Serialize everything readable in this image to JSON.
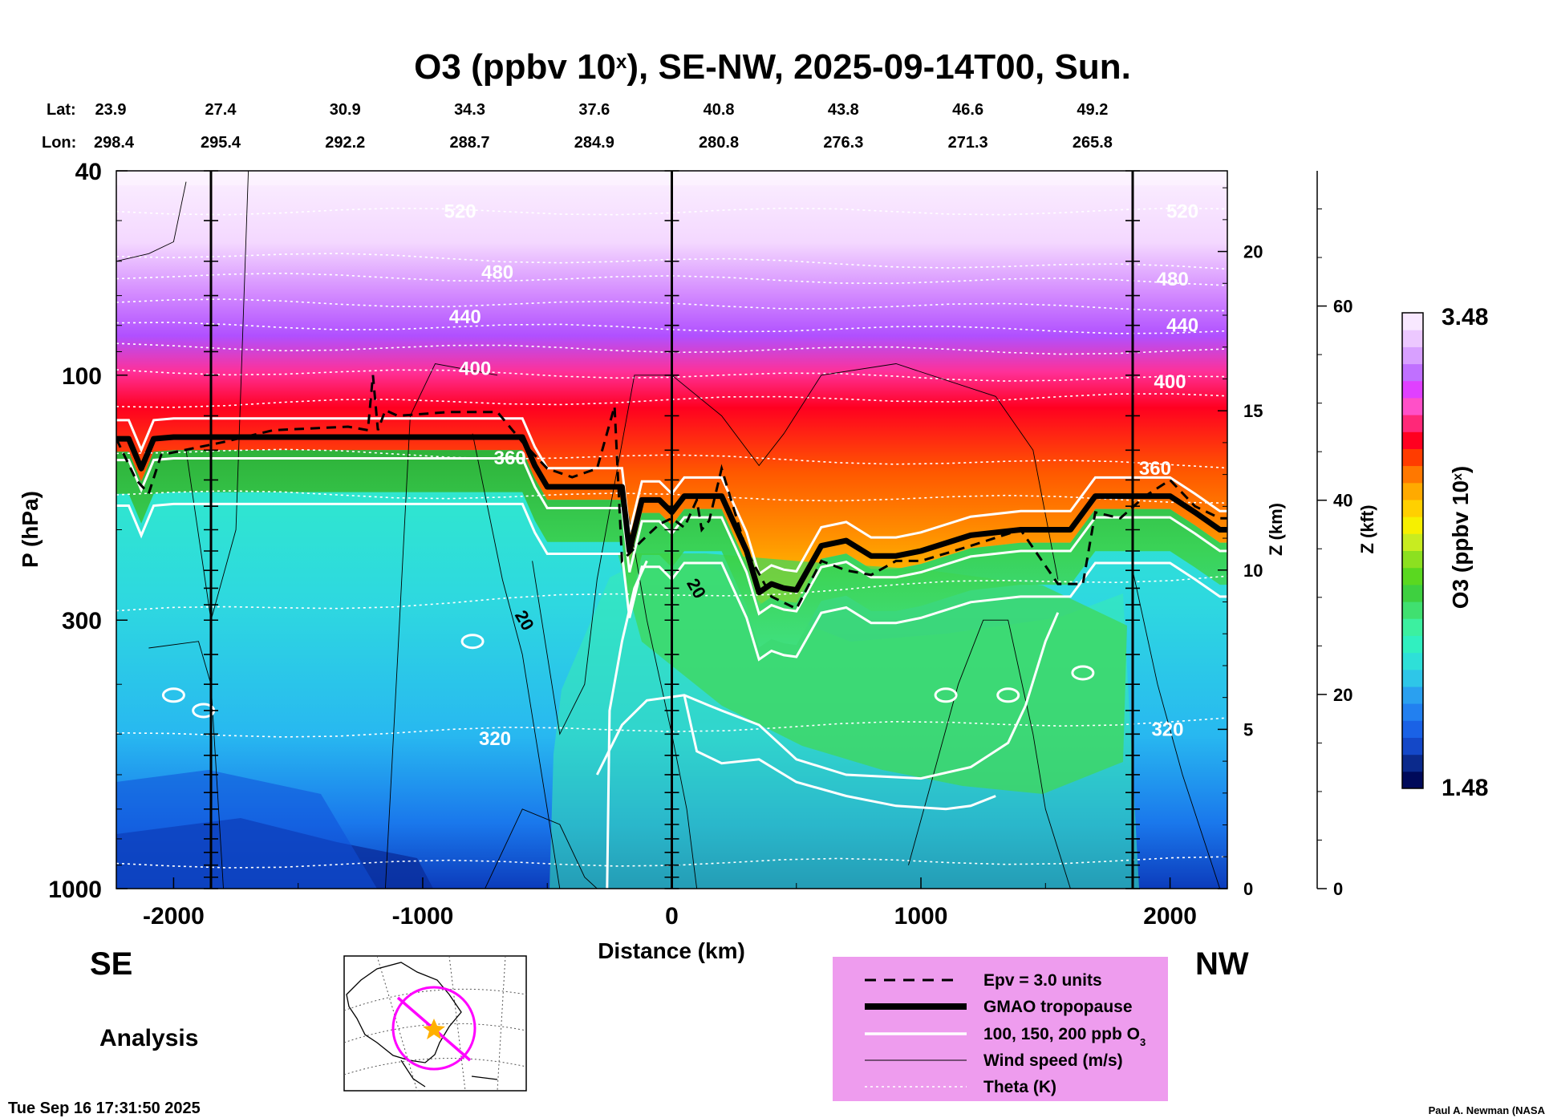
{
  "chart_data": {
    "type": "heatmap",
    "title": "O3 (ppbv 10ˣ), SE-NW, 2025-09-14T00, Sun.",
    "title_parts": {
      "pre": "O3 (ppbv 10",
      "sup": "x",
      "post": "), SE-NW, 2025-09-14T00, Sun."
    },
    "xlabel": "Distance (km)",
    "ylabel": "P (hPa)",
    "xlim": [
      -2230,
      2230
    ],
    "ylim": [
      1000,
      40
    ],
    "yscale": "log",
    "x_ticks": [
      -2000,
      -1000,
      0,
      1000,
      2000
    ],
    "y_ticks": [
      40,
      100,
      300,
      1000
    ],
    "z_km_label": "Z (km)",
    "z_km_ticks": [
      0,
      5,
      10,
      15,
      20
    ],
    "z_kft_label": "Z (kft)",
    "z_kft_ticks": [
      0,
      20,
      40,
      60
    ],
    "lat_label": "Lat:",
    "lon_label": "Lon:",
    "lat": [
      "23.9",
      "27.4",
      "30.9",
      "34.3",
      "37.6",
      "40.8",
      "43.8",
      "46.6",
      "49.2"
    ],
    "lon": [
      "298.4",
      "295.4",
      "292.2",
      "288.7",
      "284.9",
      "280.8",
      "276.3",
      "271.3",
      "265.8"
    ],
    "station_x_km": [
      -1850,
      0,
      1850
    ],
    "colorbar": {
      "label_pre": "O3 (ppbv 10",
      "label_sup": "x",
      "label_post": ")",
      "min": "1.48",
      "max": "3.48",
      "colors": [
        "#000a5a",
        "#0b2a8c",
        "#1448c8",
        "#1a62e6",
        "#2280f0",
        "#2aa0f0",
        "#2ec6e8",
        "#2ee0d8",
        "#30f0c0",
        "#3cf0a0",
        "#40e070",
        "#3ed040",
        "#5ad820",
        "#8ce020",
        "#c8ec20",
        "#f6f000",
        "#ffd000",
        "#ffaa00",
        "#ff7800",
        "#ff3c00",
        "#ff0020",
        "#ff2878",
        "#ff50c8",
        "#e040ff",
        "#c070ff",
        "#d8a0ff",
        "#ecc8ff",
        "#f8e8ff"
      ]
    },
    "theta_labels": [
      {
        "text": "520",
        "x": -850,
        "p": 48
      },
      {
        "text": "520",
        "x": 2050,
        "p": 48
      },
      {
        "text": "480",
        "x": -700,
        "p": 63
      },
      {
        "text": "480",
        "x": 2010,
        "p": 65
      },
      {
        "text": "440",
        "x": -830,
        "p": 77
      },
      {
        "text": "440",
        "x": 2050,
        "p": 80
      },
      {
        "text": "400",
        "x": -790,
        "p": 97
      },
      {
        "text": "400",
        "x": 2000,
        "p": 103
      },
      {
        "text": "360",
        "x": -650,
        "p": 145
      },
      {
        "text": "360",
        "x": 1940,
        "p": 152
      },
      {
        "text": "320",
        "x": -710,
        "p": 510
      },
      {
        "text": "320",
        "x": 1990,
        "p": 490
      }
    ],
    "wind_labels": [
      {
        "text": "20",
        "x": -590,
        "p": 300
      },
      {
        "text": "20",
        "x": 100,
        "p": 260
      }
    ],
    "tropopause_p": {
      "x": [
        -2230,
        -2180,
        -2130,
        -2080,
        -2000,
        -1900,
        -1800,
        -1500,
        -1000,
        -600,
        -550,
        -500,
        -400,
        -300,
        -200,
        -170,
        -120,
        -50,
        0,
        50,
        200,
        300,
        350,
        400,
        450,
        500,
        600,
        700,
        800,
        900,
        1000,
        1200,
        1400,
        1500,
        1600,
        1700,
        1800,
        1900,
        2000,
        2100,
        2200,
        2230
      ],
      "p": [
        133,
        133,
        152,
        133,
        132,
        132,
        132,
        132,
        132,
        132,
        150,
        165,
        165,
        165,
        165,
        220,
        175,
        175,
        185,
        172,
        172,
        220,
        265,
        255,
        260,
        262,
        215,
        210,
        225,
        225,
        220,
        205,
        200,
        200,
        200,
        172,
        172,
        172,
        172,
        185,
        200,
        200
      ]
    },
    "epv_p": {
      "x": [
        -2230,
        -2150,
        -2100,
        -2050,
        -1800,
        -1600,
        -1300,
        -1220,
        -1200,
        -1180,
        -1150,
        -1100,
        -900,
        -700,
        -600,
        -500,
        -400,
        -300,
        -230,
        -200,
        -120,
        -50,
        0,
        50,
        100,
        120,
        150,
        200,
        300,
        400,
        500,
        600,
        700,
        800,
        900,
        1000,
        1200,
        1400,
        1550,
        1650,
        1700,
        1800,
        1900,
        2000,
        2100,
        2200,
        2230
      ],
      "p": [
        133,
        160,
        170,
        143,
        135,
        128,
        126,
        128,
        100,
        128,
        117,
        120,
        118,
        118,
        135,
        152,
        158,
        152,
        115,
        230,
        210,
        195,
        190,
        198,
        175,
        200,
        192,
        152,
        220,
        270,
        285,
        230,
        240,
        245,
        230,
        230,
        215,
        200,
        255,
        255,
        185,
        190,
        172,
        160,
        180,
        190,
        190
      ]
    },
    "legend": {
      "epv": "Epv = 3.0 units",
      "tropopause": "GMAO tropopause",
      "ozone_pre": "100, 150, 200 ppb O",
      "ozone_sub": "3",
      "wind": "Wind speed (m/s)",
      "theta": "Theta (K)"
    }
  },
  "footer": {
    "left_dir": "SE",
    "right_dir": "NW",
    "analysis": "Analysis",
    "timestamp": "Tue Sep 16 17:31:50 2025",
    "author": "Paul A. Newman (NASA"
  }
}
